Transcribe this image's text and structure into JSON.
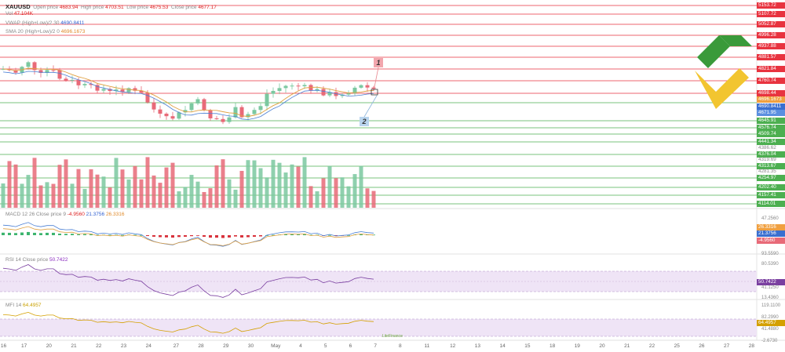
{
  "symbol": "XAUUSD",
  "ohlc": {
    "open_label": "Open price",
    "open_value": "4683.94",
    "high_label": "High price",
    "high_value": "4703.51",
    "low_label": "Low price",
    "low_value": "4675.53",
    "close_label": "Close price",
    "close_value": "4677.17"
  },
  "volume": {
    "label": "Vol",
    "value": "47.104K"
  },
  "vwap": {
    "label": "VWAP (High+Low)/2 30",
    "value": "4690.8411"
  },
  "sma": {
    "label": "SMA 20 (High+Low)/2 0",
    "value": "4696.1673"
  },
  "macd": {
    "label": "MACD 12 26 Close price 9",
    "v1": "-4.9560",
    "v2": "21.3756",
    "v3": "26.3316"
  },
  "rsi": {
    "label": "RSI 14 Close price",
    "value": "50.7422"
  },
  "mfi": {
    "label": "MFI 14",
    "value": "64.4957"
  },
  "annotations": [
    "1",
    "2"
  ],
  "price_axis": {
    "red_levels": [
      "5153.72",
      "5107.72",
      "5052.87",
      "4996.28",
      "4937.88",
      "4881.57",
      "4821.84",
      "4760.74",
      "4698.44"
    ],
    "orange_label": "4696.1673",
    "blue_labels": [
      "4690.8411",
      "4671.95"
    ],
    "green_levels": [
      "4645.91",
      "4576.74",
      "4509.74",
      "4441.34",
      "4376.04",
      "4313.67",
      "4254.97",
      "4202.40",
      "4157.41",
      "4114.01"
    ],
    "gray_labels": [
      "4319.69",
      "4386.62",
      "4281.35"
    ]
  },
  "macd_axis": [
    "47.2560",
    "26.3316",
    "21.3756",
    "-4.9560"
  ],
  "rsi_axis": [
    "93.5590",
    "80.5390",
    "50.7422",
    "41.1250",
    "13.4360"
  ],
  "mfi_axis": [
    "119.1100",
    "82.2990",
    "64.4957",
    "41.4880",
    "-2.6730"
  ],
  "x_axis": [
    "16",
    "17",
    "20",
    "21",
    "22",
    "23",
    "24",
    "27",
    "28",
    "29",
    "30",
    "May",
    "4",
    "5",
    "6",
    "7",
    "8",
    "11",
    "12",
    "13",
    "14",
    "15",
    "18",
    "19",
    "20",
    "21",
    "22",
    "25",
    "26",
    "27",
    "28"
  ],
  "watermark": "LiteFinance",
  "colors": {
    "bull": "#7bc8a0",
    "bear": "#e86a78",
    "red_line": "#e8333f",
    "green_line": "#4caf50",
    "sma": "#e0a040",
    "vwap": "#4a7fd4",
    "rsi": "#7a3fa0",
    "mfi": "#d4a000",
    "logo_green": "#3a9a3a",
    "logo_yellow": "#f2c530"
  }
}
